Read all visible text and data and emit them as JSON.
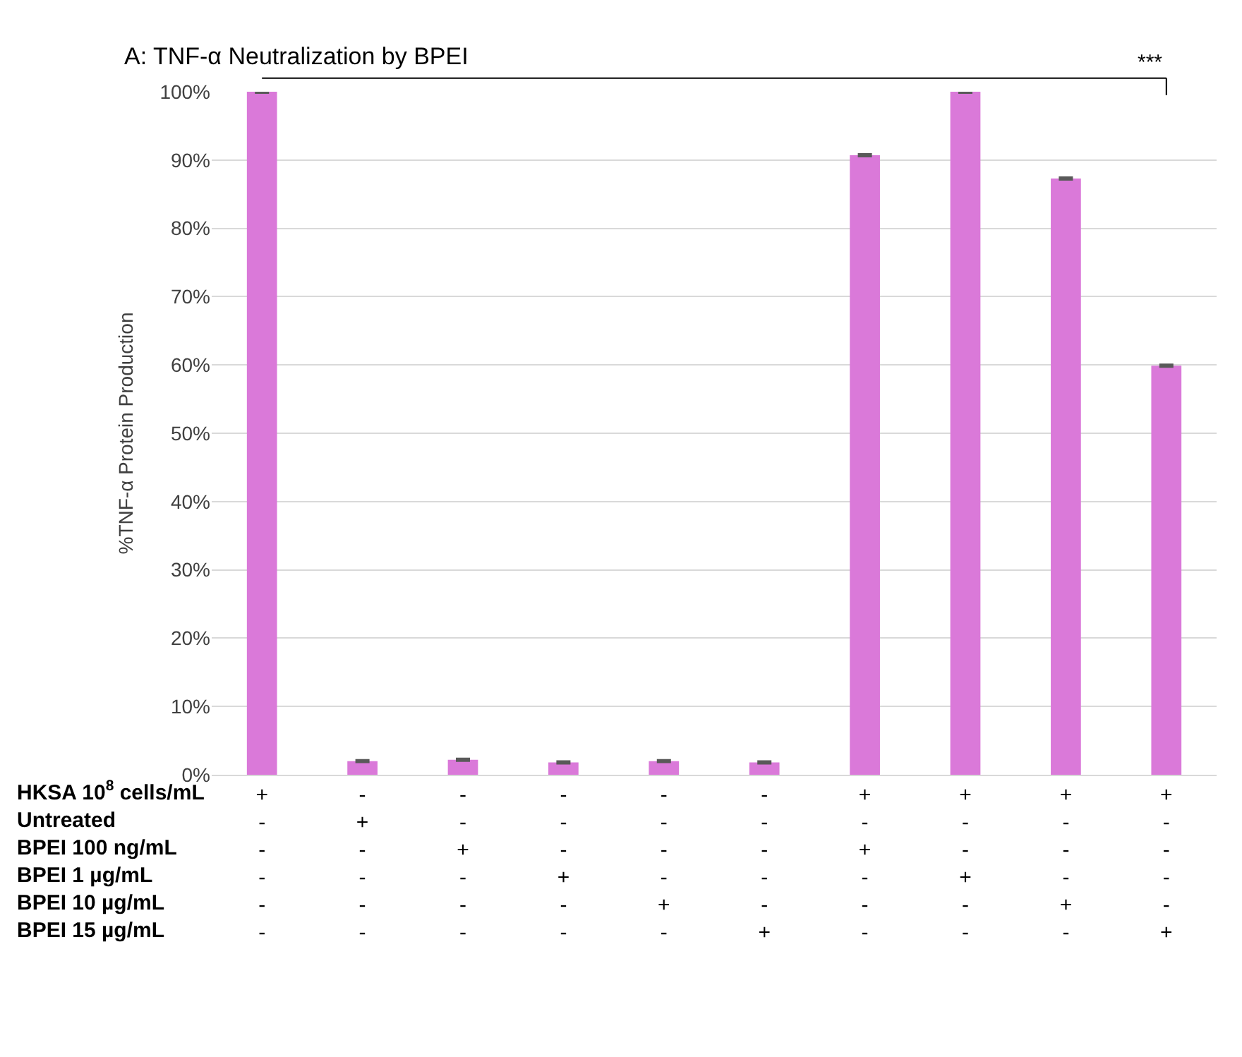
{
  "chart_data": {
    "type": "bar",
    "title": "A: TNF-α Neutralization by BPEI",
    "ylabel": "%TNF-α Protein Production",
    "categories": [
      "+\n-\n-\n-\n-\n-",
      "-\n+\n-\n-\n-\n-",
      "-\n-\n+\n-\n-\n-",
      "-\n-\n-\n+\n-\n-",
      "-\n-\n-\n-\n+\n-",
      "-\n-\n-\n-\n-\n+",
      "+\n-\n+\n-\n-\n-",
      "+\n-\n-\n+\n-\n-",
      "+\n-\n-\n-\n+\n-",
      "+\n-\n-\n-\n-\n+"
    ],
    "series": [
      {
        "color": "#da79d9",
        "values": [
          100,
          2.0,
          2.2,
          1.8,
          2.0,
          1.8,
          90.7,
          100,
          87.3,
          59.9
        ],
        "errors": [
          0.1,
          0.1,
          0.1,
          0.1,
          0.1,
          0.1,
          0.1,
          0.1,
          0.1,
          0.1
        ]
      }
    ],
    "ylim": [
      0,
      100
    ],
    "yticks": [
      {
        "value": 0,
        "label": "0%"
      },
      {
        "value": 10,
        "label": "10%"
      },
      {
        "value": 20,
        "label": "20%"
      },
      {
        "value": 30,
        "label": "30%"
      },
      {
        "value": 40,
        "label": "40%"
      },
      {
        "value": 50,
        "label": "50%"
      },
      {
        "value": 60,
        "label": "60%"
      },
      {
        "value": 70,
        "label": "70%"
      },
      {
        "value": 80,
        "label": "80%"
      },
      {
        "value": 90,
        "label": "90%"
      },
      {
        "value": 100,
        "label": "100%"
      }
    ],
    "grid": "y",
    "annotations": [
      "***",
      "HKSA 10$^{8}$ cells/mL",
      "Untreated",
      "BPEI 100 ng/mL",
      "BPEI 1 µg/mL",
      "BPEI 10 µg/mL",
      "BPEI 15 µg/mL"
    ]
  }
}
